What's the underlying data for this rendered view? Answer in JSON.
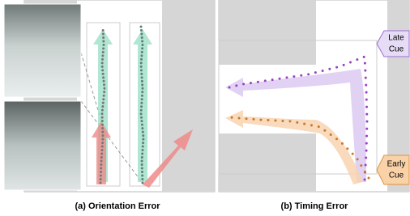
{
  "late_cue": [
    "Late",
    "Cue"
  ],
  "early_cue": [
    "Early",
    "Cue"
  ],
  "captions": [
    "(a) Orientation Error",
    "(b) Timing Error"
  ]
}
